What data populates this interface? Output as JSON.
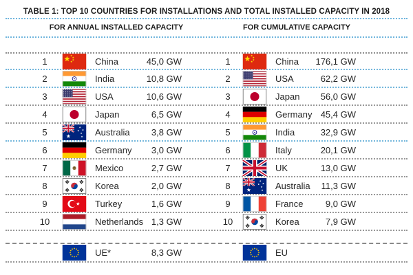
{
  "title": "TABLE 1: TOP 10 COUNTRIES FOR INSTALLATIONS AND TOTAL INSTALLED CAPACITY IN 2018",
  "table": {
    "columns": [
      {
        "header": "FOR ANNUAL INSTALLED CAPACITY",
        "rows": [
          {
            "rank": "1",
            "country": "China",
            "value": "45,0 GW",
            "flag_icon": "flag-china-icon"
          },
          {
            "rank": "2",
            "country": "India",
            "value": "10,8 GW",
            "flag_icon": "flag-india-icon"
          },
          {
            "rank": "3",
            "country": "USA",
            "value": "10,6 GW",
            "flag_icon": "flag-usa-icon"
          },
          {
            "rank": "4",
            "country": "Japan",
            "value": "6,5 GW",
            "flag_icon": "flag-japan-icon"
          },
          {
            "rank": "5",
            "country": "Australia",
            "value": "3,8 GW",
            "flag_icon": "flag-australia-icon"
          },
          {
            "rank": "6",
            "country": "Germany",
            "value": "3,0 GW",
            "flag_icon": "flag-germany-icon"
          },
          {
            "rank": "7",
            "country": "Mexico",
            "value": "2,7 GW",
            "flag_icon": "flag-mexico-icon"
          },
          {
            "rank": "8",
            "country": "Korea",
            "value": "2,0 GW",
            "flag_icon": "flag-korea-icon"
          },
          {
            "rank": "9",
            "country": "Turkey",
            "value": "1,6 GW",
            "flag_icon": "flag-turkey-icon"
          },
          {
            "rank": "10",
            "country": "Netherlands",
            "value": "1,3 GW",
            "flag_icon": "flag-netherlands-icon"
          }
        ],
        "footer": {
          "label": "UE*",
          "value": "8,3 GW",
          "flag_icon": "flag-eu-icon"
        }
      },
      {
        "header": "FOR CUMULATIVE CAPACITY",
        "rows": [
          {
            "rank": "1",
            "country": "China",
            "value": "176,1 GW",
            "flag_icon": "flag-china-icon"
          },
          {
            "rank": "2",
            "country": "USA",
            "value": "62,2 GW",
            "flag_icon": "flag-usa-icon"
          },
          {
            "rank": "3",
            "country": "Japan",
            "value": "56,0 GW",
            "flag_icon": "flag-japan-icon"
          },
          {
            "rank": "4",
            "country": "Germany",
            "value": "45,4 GW",
            "flag_icon": "flag-germany-icon"
          },
          {
            "rank": "5",
            "country": "India",
            "value": "32,9 GW",
            "flag_icon": "flag-india-icon"
          },
          {
            "rank": "6",
            "country": "Italy",
            "value": "20,1 GW",
            "flag_icon": "flag-italy-icon"
          },
          {
            "rank": "7",
            "country": "UK",
            "value": "13,0 GW",
            "flag_icon": "flag-uk-icon"
          },
          {
            "rank": "8",
            "country": "Australia",
            "value": "11,3 GW",
            "flag_icon": "flag-australia-icon"
          },
          {
            "rank": "9",
            "country": "France",
            "value": "9,0 GW",
            "flag_icon": "flag-france-icon"
          },
          {
            "rank": "10",
            "country": "Korea",
            "value": "7,9 GW",
            "flag_icon": "flag-korea-icon"
          }
        ],
        "footer": {
          "label": "EU",
          "value": "",
          "flag_icon": "flag-eu-icon"
        }
      }
    ]
  },
  "colors": {
    "separator_blue": "#74b7dc",
    "separator_gray": "#989898",
    "text": "#262626",
    "background": "#ffffff"
  }
}
